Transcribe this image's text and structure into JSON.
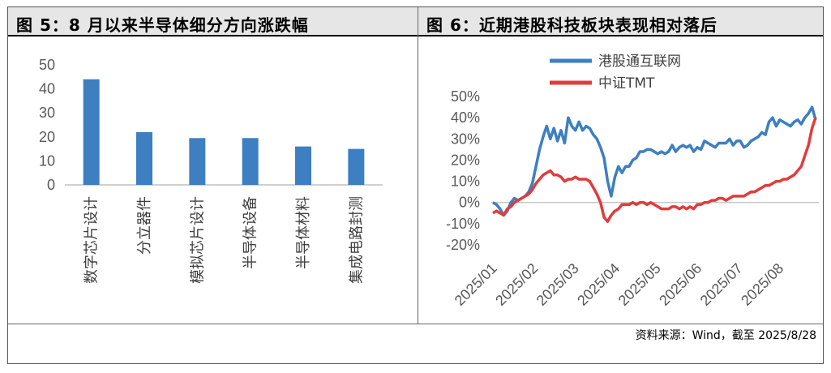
{
  "left_panel": {
    "title": "图 5：8 月以来半导体细分方向涨跌幅"
  },
  "right_panel": {
    "title": "图 6：近期港股科技板块表现相对落后"
  },
  "source": "资料来源：Wind，截至 2025/8/28",
  "chart_data": [
    {
      "type": "bar",
      "categories": [
        "数字芯片设计",
        "分立器件",
        "模拟芯片设计",
        "半导体设备",
        "半导体材料",
        "集成电路封测"
      ],
      "values": [
        44,
        22,
        19.5,
        19.5,
        16,
        15
      ],
      "ylim": [
        0,
        50
      ],
      "yticks": [
        0,
        10,
        20,
        30,
        40,
        50
      ],
      "bar_color": "#3d7fc1",
      "grid": false
    },
    {
      "type": "line",
      "x_ticks": [
        "2025/01",
        "2025/02",
        "2025/03",
        "2025/04",
        "2025/05",
        "2025/06",
        "2025/07",
        "2025/08"
      ],
      "ylim": [
        -20,
        50
      ],
      "yticks": [
        "-20%",
        "-10%",
        "0%",
        "10%",
        "20%",
        "30%",
        "40%",
        "50%"
      ],
      "legend_position": "top",
      "series": [
        {
          "name": "港股通互联网",
          "color": "#3d7fc1",
          "values": [
            0,
            -1,
            -3,
            -6,
            -4,
            0,
            2,
            1,
            2,
            3,
            5,
            9,
            17,
            25,
            31,
            36,
            30,
            35,
            29,
            34,
            28,
            40,
            36,
            34,
            38,
            34,
            36,
            35,
            32,
            30,
            26,
            21,
            10,
            3,
            12,
            17,
            14,
            17,
            17,
            20,
            21,
            24,
            24,
            25,
            25,
            24,
            23,
            24,
            23,
            24,
            27,
            24,
            26,
            27,
            26,
            27,
            24,
            26,
            25,
            29,
            28,
            27,
            26,
            28,
            28,
            28,
            30,
            27,
            29,
            29,
            26,
            27,
            29,
            30,
            31,
            33,
            32,
            38,
            40,
            36,
            39,
            38,
            37,
            36,
            38,
            39,
            37,
            40,
            42,
            45,
            39
          ]
        },
        {
          "name": "中证TMT",
          "color": "#e03c3c",
          "values": [
            -5,
            -4,
            -5,
            -6,
            -3,
            -2,
            0,
            1,
            2,
            3,
            4,
            6,
            9,
            11,
            13,
            14,
            15,
            13,
            13,
            12,
            10,
            11,
            11,
            12,
            11,
            11,
            11,
            10,
            7,
            4,
            0,
            -7,
            -9,
            -6,
            -4,
            -3,
            -1,
            -1,
            -1,
            0,
            -1,
            0,
            0,
            -1,
            0,
            -1,
            -2,
            -3,
            -3,
            -3,
            -2,
            -2,
            -3,
            -2,
            -3,
            -2,
            -3,
            -1,
            -1,
            0,
            0,
            1,
            1,
            2,
            2,
            1,
            2,
            3,
            3,
            3,
            3,
            4,
            5,
            5,
            6,
            7,
            8,
            8,
            9,
            10,
            10,
            11,
            11,
            12,
            13,
            15,
            17,
            22,
            27,
            35,
            40
          ]
        }
      ]
    }
  ]
}
